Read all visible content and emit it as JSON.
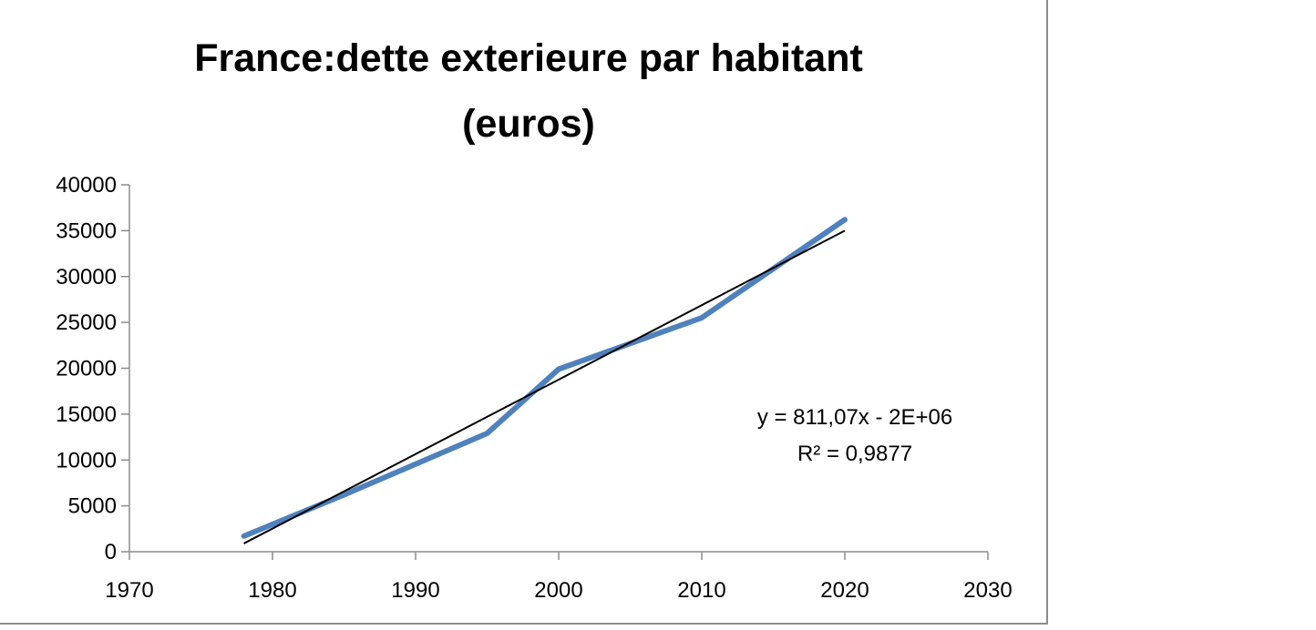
{
  "chart_data": {
    "type": "line",
    "title_lines": [
      "France:dette exterieure par habitant",
      "(euros)"
    ],
    "xlabel": "",
    "ylabel": "",
    "xlim": [
      1970,
      2030
    ],
    "ylim": [
      0,
      40000
    ],
    "x_ticks": [
      1970,
      1980,
      1990,
      2000,
      2010,
      2020,
      2030
    ],
    "y_ticks": [
      0,
      5000,
      10000,
      15000,
      20000,
      25000,
      30000,
      35000,
      40000
    ],
    "grid": false,
    "legend": "none",
    "series": [
      {
        "color": "#4f81bd",
        "points": [
          {
            "x": 1978,
            "y": 1700
          },
          {
            "x": 1985,
            "y": 6200
          },
          {
            "x": 1995,
            "y": 12900
          },
          {
            "x": 2000,
            "y": 19900
          },
          {
            "x": 2010,
            "y": 25500
          },
          {
            "x": 2020,
            "y": 36200
          }
        ]
      }
    ],
    "trendline": {
      "color": "#000000",
      "x_from": 1978,
      "x_to": 2020,
      "y_from": 900,
      "y_to": 35000,
      "equation": "y = 811,07x - 2E+06",
      "r_squared": "R² = 0,9877"
    }
  }
}
